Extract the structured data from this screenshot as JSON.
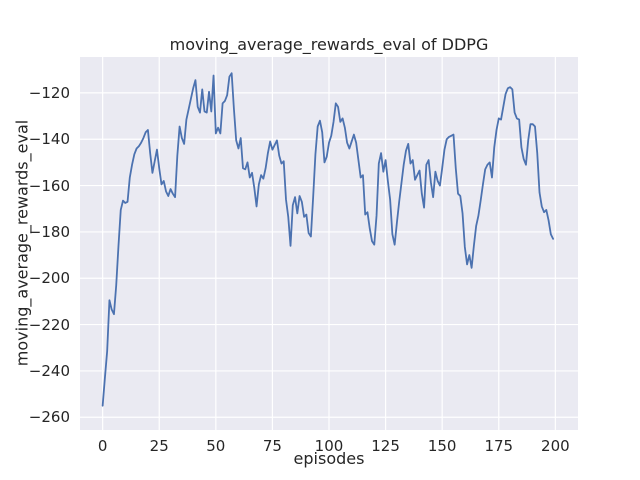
{
  "chart_data": {
    "type": "line",
    "title": "moving_average_rewards_eval of DDPG",
    "xlabel": "episodes",
    "ylabel": "moving_average_rewards_eval",
    "x_start": 0,
    "x_step": 1,
    "xlim": [
      -10,
      210
    ],
    "ylim": [
      -265.5,
      -104.5
    ],
    "xticks": [
      0,
      25,
      50,
      75,
      100,
      125,
      150,
      175,
      200
    ],
    "yticks": [
      -120,
      -140,
      -160,
      -180,
      -200,
      -220,
      -240,
      -260
    ],
    "grid": true,
    "legend": false,
    "line_color": "#4C72B0",
    "plot_background": "#EAEAF2",
    "grid_color": "#FFFFFF",
    "text_color": "#262626",
    "values": [
      -255,
      -243,
      -231.5,
      -209.5,
      -213.5,
      -215.5,
      -203,
      -186,
      -170.5,
      -166.5,
      -167.5,
      -167,
      -156.5,
      -151,
      -146.5,
      -144,
      -143,
      -141.5,
      -139.5,
      -137,
      -136,
      -146,
      -154.5,
      -149.5,
      -144.5,
      -152.5,
      -159.5,
      -158,
      -162.5,
      -164.5,
      -161.5,
      -163.5,
      -165,
      -147,
      -134.5,
      -139.5,
      -142,
      -131.5,
      -127,
      -122.5,
      -118,
      -114.5,
      -126,
      -128.5,
      -118.5,
      -128,
      -128.5,
      -119.5,
      -128,
      -112.5,
      -137.5,
      -135,
      -137.5,
      -124.5,
      -123.5,
      -121,
      -113,
      -111.5,
      -127,
      -140.5,
      -144,
      -139.5,
      -152.5,
      -153,
      -150,
      -156.5,
      -154.5,
      -161,
      -169,
      -159.5,
      -155.5,
      -157,
      -152.5,
      -146,
      -141,
      -144.5,
      -142.5,
      -140.5,
      -147,
      -150.5,
      -149.5,
      -166,
      -173.5,
      -186,
      -168.5,
      -165,
      -172,
      -164.5,
      -167,
      -173.5,
      -172.5,
      -180.5,
      -182,
      -165,
      -146.5,
      -134.5,
      -132,
      -137,
      -150,
      -147.5,
      -141.5,
      -138.5,
      -132.5,
      -124.5,
      -126,
      -132.5,
      -131,
      -135,
      -141.5,
      -144,
      -141,
      -138,
      -141.5,
      -149,
      -156.5,
      -155.5,
      -172.5,
      -171.5,
      -178.5,
      -184,
      -185.5,
      -173,
      -150.5,
      -146,
      -154,
      -149,
      -158,
      -166,
      -181,
      -185.5,
      -176,
      -167,
      -159,
      -151,
      -145,
      -142,
      -150.5,
      -149,
      -157.5,
      -155.5,
      -153.5,
      -163.5,
      -169.5,
      -151,
      -149,
      -158.5,
      -165,
      -154,
      -158,
      -160,
      -152.5,
      -144.5,
      -140,
      -139,
      -138.5,
      -138,
      -152.5,
      -163.5,
      -164.5,
      -172,
      -186.5,
      -194,
      -190,
      -195.5,
      -186,
      -177.5,
      -173,
      -166.5,
      -159.5,
      -153,
      -151,
      -150,
      -156.5,
      -143.5,
      -136,
      -131,
      -131.5,
      -126,
      -120.5,
      -118,
      -117.5,
      -118.5,
      -128.5,
      -131,
      -131.5,
      -143.5,
      -148.5,
      -151,
      -140.5,
      -133.5,
      -133.5,
      -134.5,
      -146,
      -163,
      -169,
      -171.5,
      -170.5,
      -175,
      -181,
      -183
    ]
  }
}
